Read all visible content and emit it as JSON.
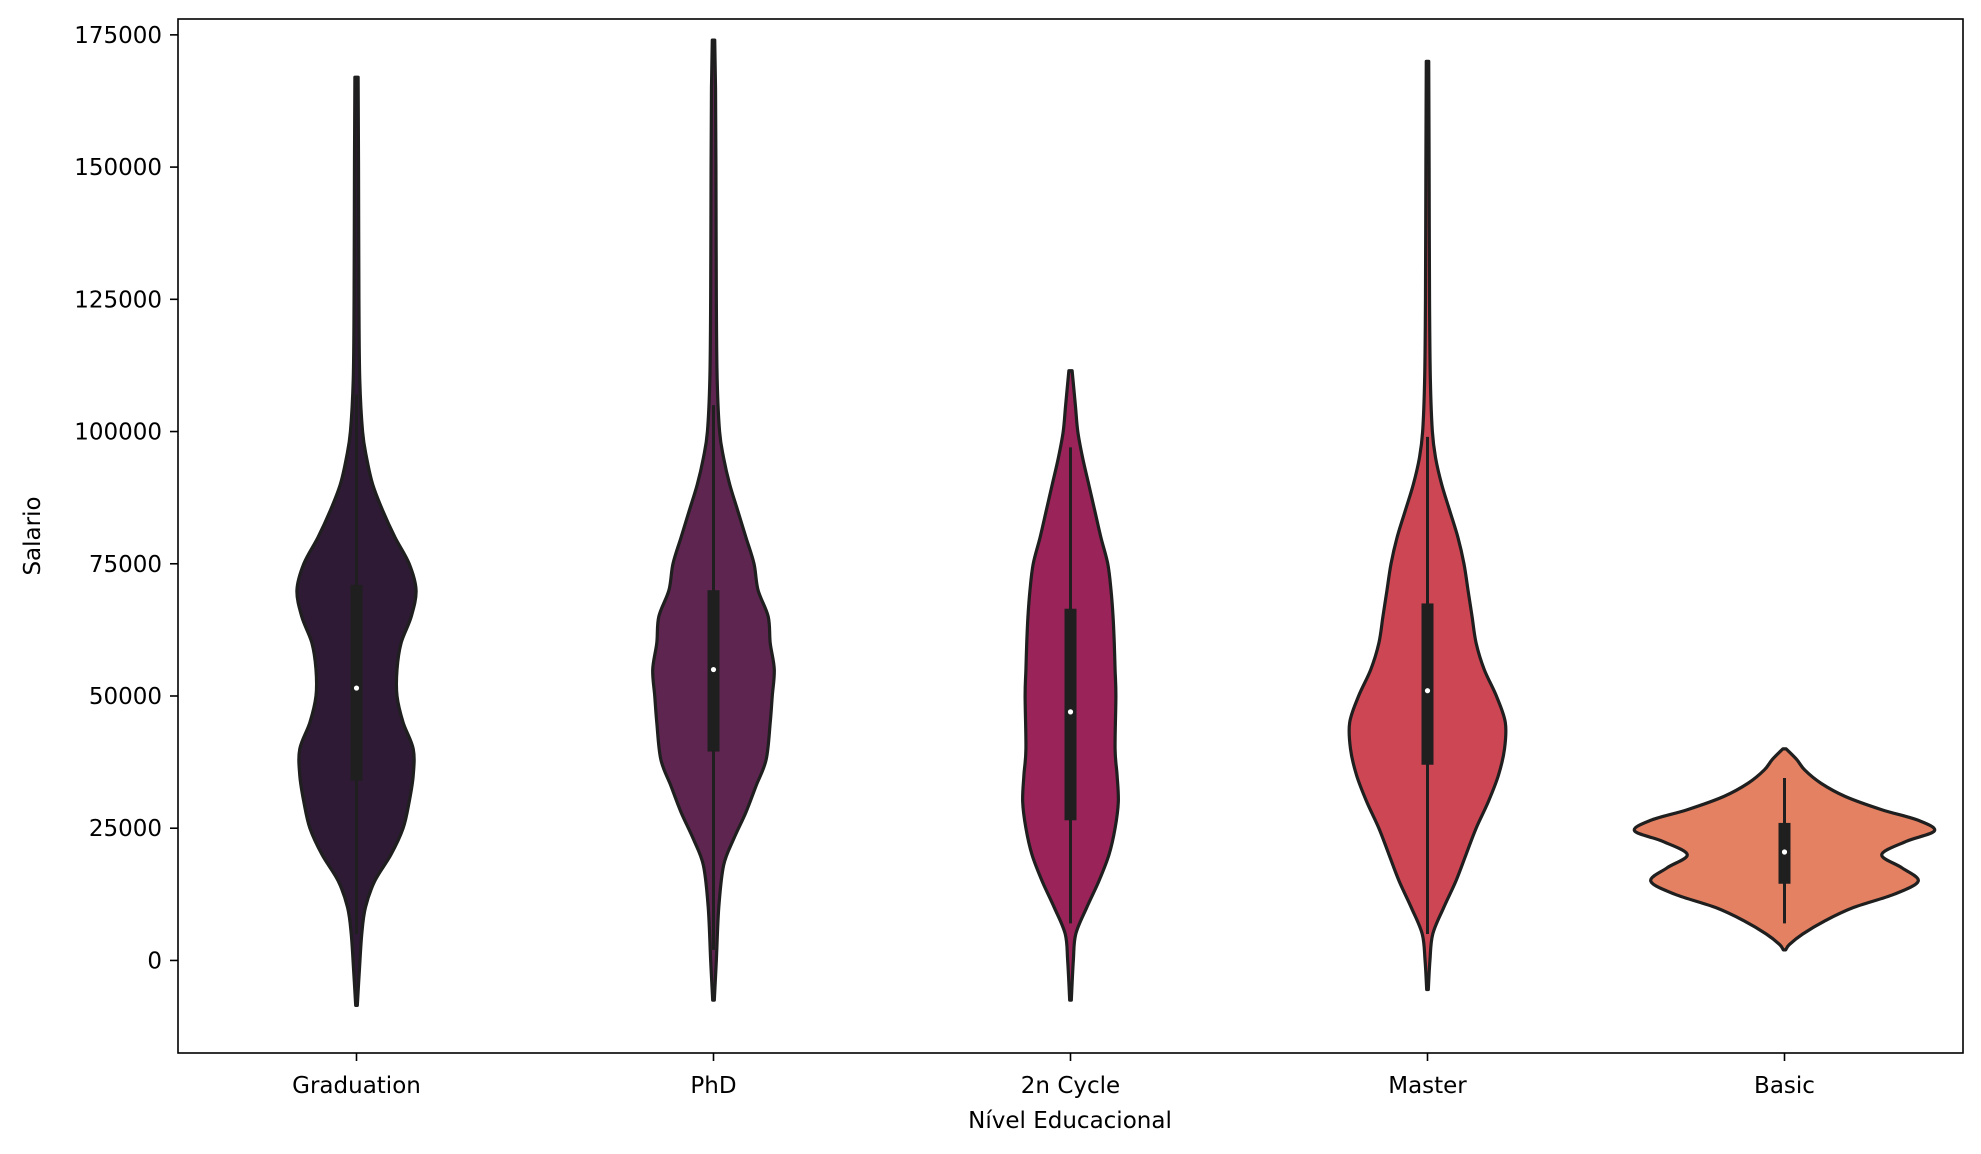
{
  "chart_data": {
    "type": "violin",
    "title": "",
    "xlabel": "Nível Educacional",
    "ylabel": "Salario",
    "ylim": [
      -17500,
      178000
    ],
    "yticks": [
      0,
      25000,
      50000,
      75000,
      100000,
      125000,
      150000,
      175000
    ],
    "grid": false,
    "categories": [
      "Graduation",
      "PhD",
      "2n Cycle",
      "Master",
      "Basic"
    ],
    "series": [
      {
        "category": "Graduation",
        "color": "#2e1a35",
        "min": -8500,
        "max": 167000,
        "q1": 34000,
        "median": 51500,
        "q3": 71000,
        "whisker_low": 5000,
        "whisker_high": 107000,
        "profile": [
          [
            -8500,
            0.002
          ],
          [
            -2000,
            0.007
          ],
          [
            5000,
            0.013
          ],
          [
            10000,
            0.022
          ],
          [
            15000,
            0.045
          ],
          [
            20000,
            0.085
          ],
          [
            25000,
            0.115
          ],
          [
            30000,
            0.13
          ],
          [
            35000,
            0.14
          ],
          [
            40000,
            0.14
          ],
          [
            45000,
            0.115
          ],
          [
            50000,
            0.1
          ],
          [
            55000,
            0.1
          ],
          [
            60000,
            0.11
          ],
          [
            65000,
            0.135
          ],
          [
            70000,
            0.147
          ],
          [
            75000,
            0.13
          ],
          [
            80000,
            0.095
          ],
          [
            85000,
            0.065
          ],
          [
            90000,
            0.04
          ],
          [
            95000,
            0.025
          ],
          [
            100000,
            0.015
          ],
          [
            110000,
            0.008
          ],
          [
            125000,
            0.006
          ],
          [
            150000,
            0.005
          ],
          [
            167000,
            0.004
          ]
        ]
      },
      {
        "category": "PhD",
        "color": "#5e2550",
        "min": -7500,
        "max": 174000,
        "q1": 39500,
        "median": 55000,
        "q3": 70000,
        "whisker_low": 2000,
        "whisker_high": 105000,
        "profile": [
          [
            -7500,
            0.002
          ],
          [
            0,
            0.007
          ],
          [
            10000,
            0.013
          ],
          [
            18000,
            0.025
          ],
          [
            23000,
            0.05
          ],
          [
            28000,
            0.08
          ],
          [
            33000,
            0.105
          ],
          [
            38000,
            0.13
          ],
          [
            45000,
            0.14
          ],
          [
            50000,
            0.145
          ],
          [
            55000,
            0.15
          ],
          [
            60000,
            0.14
          ],
          [
            65000,
            0.135
          ],
          [
            70000,
            0.11
          ],
          [
            75000,
            0.1
          ],
          [
            80000,
            0.08
          ],
          [
            85000,
            0.06
          ],
          [
            90000,
            0.04
          ],
          [
            95000,
            0.025
          ],
          [
            100000,
            0.015
          ],
          [
            110000,
            0.009
          ],
          [
            125000,
            0.007
          ],
          [
            150000,
            0.006
          ],
          [
            165000,
            0.005
          ],
          [
            174000,
            0.003
          ]
        ]
      },
      {
        "category": "2n Cycle",
        "color": "#9a2359",
        "min": -7500,
        "max": 111500,
        "q1": 26500,
        "median": 47000,
        "q3": 66500,
        "whisker_low": 7000,
        "whisker_high": 97000,
        "profile": [
          [
            -7500,
            0.002
          ],
          [
            0,
            0.007
          ],
          [
            5000,
            0.013
          ],
          [
            10000,
            0.04
          ],
          [
            15000,
            0.07
          ],
          [
            20000,
            0.095
          ],
          [
            25000,
            0.11
          ],
          [
            30000,
            0.118
          ],
          [
            35000,
            0.115
          ],
          [
            40000,
            0.11
          ],
          [
            50000,
            0.112
          ],
          [
            55000,
            0.11
          ],
          [
            60000,
            0.108
          ],
          [
            65000,
            0.105
          ],
          [
            70000,
            0.1
          ],
          [
            75000,
            0.092
          ],
          [
            80000,
            0.075
          ],
          [
            85000,
            0.06
          ],
          [
            90000,
            0.045
          ],
          [
            95000,
            0.03
          ],
          [
            100000,
            0.018
          ],
          [
            105000,
            0.012
          ],
          [
            111500,
            0.004
          ]
        ]
      },
      {
        "category": "Master",
        "color": "#cd4654",
        "min": -5500,
        "max": 170000,
        "q1": 37000,
        "median": 51000,
        "q3": 67500,
        "whisker_low": 5000,
        "whisker_high": 99000,
        "profile": [
          [
            -5500,
            0.002
          ],
          [
            0,
            0.006
          ],
          [
            5000,
            0.013
          ],
          [
            10000,
            0.04
          ],
          [
            15000,
            0.07
          ],
          [
            20000,
            0.095
          ],
          [
            25000,
            0.12
          ],
          [
            30000,
            0.15
          ],
          [
            35000,
            0.175
          ],
          [
            40000,
            0.19
          ],
          [
            45000,
            0.192
          ],
          [
            50000,
            0.17
          ],
          [
            55000,
            0.14
          ],
          [
            60000,
            0.12
          ],
          [
            65000,
            0.11
          ],
          [
            70000,
            0.1
          ],
          [
            75000,
            0.09
          ],
          [
            80000,
            0.075
          ],
          [
            85000,
            0.055
          ],
          [
            90000,
            0.035
          ],
          [
            95000,
            0.02
          ],
          [
            100000,
            0.012
          ],
          [
            110000,
            0.007
          ],
          [
            125000,
            0.005
          ],
          [
            150000,
            0.004
          ],
          [
            170000,
            0.003
          ]
        ]
      },
      {
        "category": "Basic",
        "color": "#e38162",
        "min": 2000,
        "max": 40000,
        "q1": 14500,
        "median": 20500,
        "q3": 26000,
        "whisker_low": 7000,
        "whisker_high": 34500,
        "profile": [
          [
            2000,
            0.003
          ],
          [
            3000,
            0.012
          ],
          [
            5000,
            0.045
          ],
          [
            7500,
            0.1
          ],
          [
            10000,
            0.17
          ],
          [
            12500,
            0.27
          ],
          [
            15000,
            0.33
          ],
          [
            17500,
            0.29
          ],
          [
            20000,
            0.24
          ],
          [
            22500,
            0.3
          ],
          [
            24500,
            0.37
          ],
          [
            26500,
            0.33
          ],
          [
            28500,
            0.24
          ],
          [
            31000,
            0.15
          ],
          [
            33500,
            0.09
          ],
          [
            36000,
            0.05
          ],
          [
            38000,
            0.03
          ],
          [
            40000,
            0.004
          ]
        ]
      }
    ]
  }
}
